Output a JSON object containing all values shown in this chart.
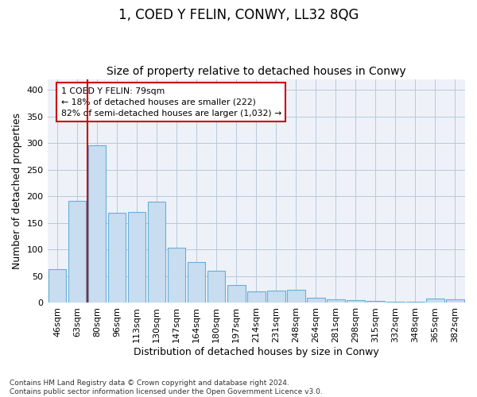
{
  "title": "1, COED Y FELIN, CONWY, LL32 8QG",
  "subtitle": "Size of property relative to detached houses in Conwy",
  "xlabel": "Distribution of detached houses by size in Conwy",
  "ylabel": "Number of detached properties",
  "categories": [
    "46sqm",
    "63sqm",
    "80sqm",
    "96sqm",
    "113sqm",
    "130sqm",
    "147sqm",
    "164sqm",
    "180sqm",
    "197sqm",
    "214sqm",
    "231sqm",
    "248sqm",
    "264sqm",
    "281sqm",
    "298sqm",
    "315sqm",
    "332sqm",
    "348sqm",
    "365sqm",
    "382sqm"
  ],
  "values": [
    63,
    192,
    295,
    169,
    170,
    190,
    104,
    77,
    61,
    33,
    21,
    23,
    25,
    10,
    6,
    5,
    4,
    2,
    2,
    8,
    7
  ],
  "bar_color": "#c8ddf0",
  "bar_edge_color": "#6aaed6",
  "bar_edge_width": 0.8,
  "property_line_color": "#cc0000",
  "annotation_text": "1 COED Y FELIN: 79sqm\n← 18% of detached houses are smaller (222)\n82% of semi-detached houses are larger (1,032) →",
  "annotation_box_color": "#ffffff",
  "annotation_box_edge": "#cc0000",
  "ylim": [
    0,
    420
  ],
  "yticks": [
    0,
    50,
    100,
    150,
    200,
    250,
    300,
    350,
    400
  ],
  "footnote": "Contains HM Land Registry data © Crown copyright and database right 2024.\nContains public sector information licensed under the Open Government Licence v3.0.",
  "bg_color": "#ffffff",
  "plot_bg_color": "#eef2f8",
  "title_fontsize": 12,
  "subtitle_fontsize": 10,
  "tick_fontsize": 8,
  "ylabel_fontsize": 9,
  "xlabel_fontsize": 9,
  "footnote_fontsize": 6.5
}
